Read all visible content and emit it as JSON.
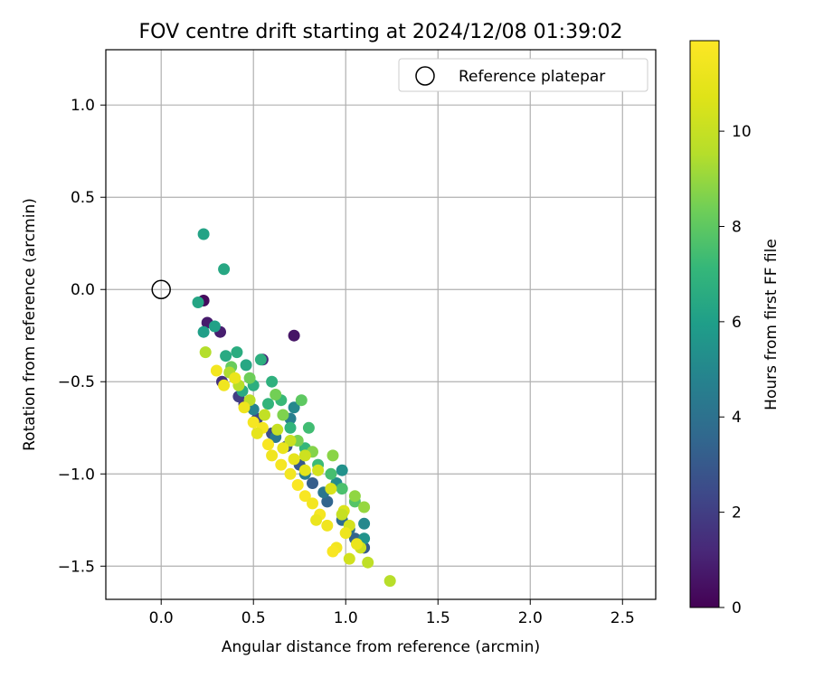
{
  "chart_data": {
    "type": "scatter",
    "title": "FOV centre drift starting at 2024/12/08 01:39:02",
    "xlabel": "Angular distance from reference (arcmin)",
    "ylabel": "Rotation from reference (arcmin)",
    "xlim": [
      -0.3,
      2.68
    ],
    "ylim": [
      -1.68,
      1.3
    ],
    "xticks": [
      "0.0",
      "0.5",
      "1.0",
      "1.5",
      "2.0",
      "2.5"
    ],
    "yticks": [
      "1.0",
      "0.5",
      "0.0",
      "−0.5",
      "−1.0",
      "−1.5"
    ],
    "grid": true,
    "legend": {
      "position": "top-right",
      "entries": [
        "Reference platepar"
      ]
    },
    "reference_point": {
      "x": 0.0,
      "y": 0.0
    },
    "colorbar": {
      "label": "Hours from first FF file",
      "min": 0,
      "max": 11.9,
      "ticks": [
        "0",
        "2",
        "4",
        "6",
        "8",
        "10"
      ],
      "colormap": "viridis"
    },
    "series": [
      {
        "columns": [
          "x",
          "y",
          "hours"
        ],
        "points": [
          [
            0.23,
            -0.06,
            0.3
          ],
          [
            0.25,
            -0.18,
            0.8
          ],
          [
            0.32,
            -0.23,
            0.9
          ],
          [
            0.72,
            -0.25,
            0.6
          ],
          [
            0.55,
            -0.38,
            1.2
          ],
          [
            0.33,
            -0.5,
            1.5
          ],
          [
            0.42,
            -0.58,
            2.0
          ],
          [
            0.45,
            -0.62,
            1.8
          ],
          [
            0.52,
            -0.7,
            2.2
          ],
          [
            0.6,
            -0.78,
            2.5
          ],
          [
            0.68,
            -0.85,
            2.8
          ],
          [
            0.75,
            -0.95,
            3.0
          ],
          [
            0.82,
            -1.05,
            3.2
          ],
          [
            0.9,
            -1.15,
            3.5
          ],
          [
            0.98,
            -1.25,
            3.8
          ],
          [
            1.05,
            -1.35,
            3.4
          ],
          [
            1.1,
            -1.4,
            3.1
          ],
          [
            1.02,
            -1.3,
            4.0
          ],
          [
            0.88,
            -1.1,
            4.2
          ],
          [
            0.78,
            -1.0,
            4.5
          ],
          [
            0.62,
            -0.8,
            4.3
          ],
          [
            0.5,
            -0.65,
            4.8
          ],
          [
            0.7,
            -0.7,
            4.6
          ],
          [
            0.72,
            -0.64,
            5.0
          ],
          [
            0.95,
            -1.05,
            5.2
          ],
          [
            1.1,
            -1.27,
            5.0
          ],
          [
            0.98,
            -0.98,
            5.4
          ],
          [
            1.1,
            -1.35,
            5.5
          ],
          [
            0.23,
            0.3,
            6.2
          ],
          [
            0.34,
            0.11,
            6.4
          ],
          [
            0.2,
            -0.07,
            6.3
          ],
          [
            0.23,
            -0.23,
            6.0
          ],
          [
            0.29,
            -0.2,
            6.1
          ],
          [
            0.35,
            -0.36,
            6.5
          ],
          [
            0.41,
            -0.34,
            6.6
          ],
          [
            0.46,
            -0.41,
            6.4
          ],
          [
            0.54,
            -0.38,
            6.7
          ],
          [
            0.6,
            -0.5,
            6.8
          ],
          [
            0.44,
            -0.55,
            6.5
          ],
          [
            0.5,
            -0.52,
            6.7
          ],
          [
            0.58,
            -0.62,
            7.0
          ],
          [
            0.65,
            -0.6,
            7.2
          ],
          [
            0.7,
            -0.75,
            7.0
          ],
          [
            0.8,
            -0.75,
            7.4
          ],
          [
            0.78,
            -0.86,
            7.1
          ],
          [
            0.85,
            -0.95,
            7.3
          ],
          [
            0.92,
            -1.0,
            7.5
          ],
          [
            0.98,
            -1.08,
            7.6
          ],
          [
            1.05,
            -1.15,
            7.8
          ],
          [
            0.76,
            -0.6,
            8.0
          ],
          [
            0.38,
            -0.42,
            8.2
          ],
          [
            0.48,
            -0.48,
            8.3
          ],
          [
            0.62,
            -0.57,
            8.4
          ],
          [
            0.66,
            -0.68,
            8.6
          ],
          [
            0.74,
            -0.82,
            8.5
          ],
          [
            0.82,
            -0.88,
            8.7
          ],
          [
            0.93,
            -0.9,
            8.8
          ],
          [
            1.05,
            -1.12,
            8.9
          ],
          [
            1.1,
            -1.18,
            9.0
          ],
          [
            0.24,
            -0.34,
            9.5
          ],
          [
            0.37,
            -0.45,
            9.4
          ],
          [
            0.42,
            -0.52,
            9.6
          ],
          [
            0.48,
            -0.6,
            9.7
          ],
          [
            0.56,
            -0.68,
            9.9
          ],
          [
            0.63,
            -0.76,
            10.0
          ],
          [
            0.7,
            -0.82,
            10.1
          ],
          [
            0.78,
            -0.9,
            10.2
          ],
          [
            0.85,
            -0.98,
            10.4
          ],
          [
            0.92,
            -1.08,
            10.5
          ],
          [
            0.99,
            -1.2,
            10.6
          ],
          [
            1.02,
            -1.28,
            10.4
          ],
          [
            1.08,
            -1.4,
            10.2
          ],
          [
            1.12,
            -1.48,
            9.8
          ],
          [
            1.24,
            -1.58,
            9.6
          ],
          [
            1.02,
            -1.46,
            10.3
          ],
          [
            0.98,
            -1.22,
            10.0
          ],
          [
            0.3,
            -0.44,
            11.5
          ],
          [
            0.34,
            -0.52,
            11.4
          ],
          [
            0.4,
            -0.48,
            11.2
          ],
          [
            0.45,
            -0.64,
            11.3
          ],
          [
            0.5,
            -0.72,
            11.6
          ],
          [
            0.55,
            -0.75,
            11.5
          ],
          [
            0.58,
            -0.84,
            11.7
          ],
          [
            0.6,
            -0.9,
            11.4
          ],
          [
            0.65,
            -0.95,
            11.6
          ],
          [
            0.7,
            -1.0,
            11.5
          ],
          [
            0.74,
            -1.06,
            11.8
          ],
          [
            0.78,
            -1.12,
            11.7
          ],
          [
            0.82,
            -1.16,
            11.5
          ],
          [
            0.86,
            -1.22,
            11.6
          ],
          [
            0.9,
            -1.28,
            11.4
          ],
          [
            0.84,
            -1.25,
            11.2
          ],
          [
            0.95,
            -1.4,
            11.5
          ],
          [
            1.0,
            -1.32,
            11.3
          ],
          [
            0.52,
            -0.78,
            11.0
          ],
          [
            0.66,
            -0.86,
            11.1
          ],
          [
            0.72,
            -0.92,
            11.0
          ],
          [
            0.78,
            -0.98,
            10.9
          ],
          [
            0.93,
            -1.42,
            11.7
          ],
          [
            1.06,
            -1.38,
            11.2
          ]
        ]
      }
    ]
  }
}
